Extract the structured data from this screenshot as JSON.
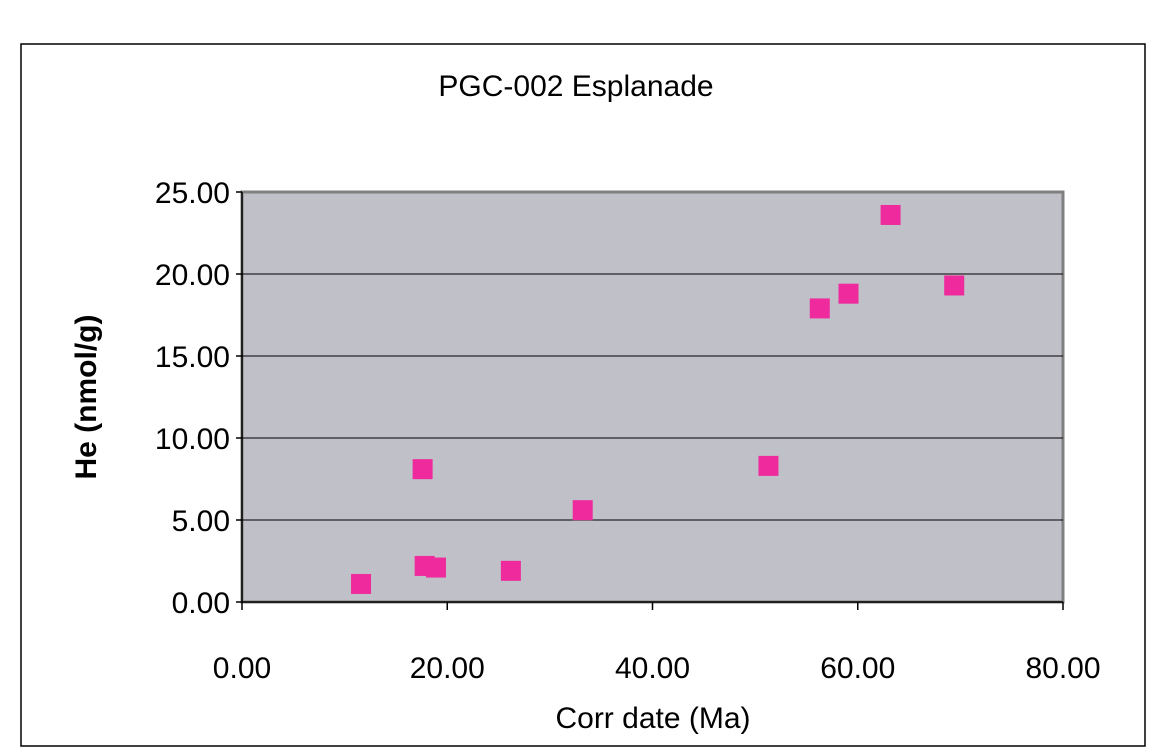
{
  "chart_data": {
    "type": "scatter",
    "title": "PGC-002 Esplanade",
    "xlabel": "Corr date (Ma)",
    "ylabel": "He (nmol/g)",
    "xlim": [
      0,
      80
    ],
    "ylim": [
      0,
      25
    ],
    "x_ticks": [
      "0.00",
      "20.00",
      "40.00",
      "60.00",
      "80.00"
    ],
    "y_ticks": [
      "0.00",
      "5.00",
      "10.00",
      "15.00",
      "20.00",
      "25.00"
    ],
    "grid": "horizontal",
    "legend": "none",
    "colors": {
      "plot_background": "#c0c0c8",
      "marker": "#ee2a9c",
      "gridline": "#000000",
      "axis": "#808080"
    },
    "marker_shape": "square",
    "series": [
      {
        "points": [
          {
            "x": 11.6,
            "y": 1.1
          },
          {
            "x": 17.6,
            "y": 8.1
          },
          {
            "x": 17.8,
            "y": 2.2
          },
          {
            "x": 18.9,
            "y": 2.1
          },
          {
            "x": 26.2,
            "y": 1.9
          },
          {
            "x": 33.2,
            "y": 5.6
          },
          {
            "x": 51.3,
            "y": 8.3
          },
          {
            "x": 56.3,
            "y": 17.9
          },
          {
            "x": 59.1,
            "y": 18.8
          },
          {
            "x": 63.2,
            "y": 23.6
          },
          {
            "x": 69.4,
            "y": 19.3
          }
        ]
      }
    ]
  }
}
